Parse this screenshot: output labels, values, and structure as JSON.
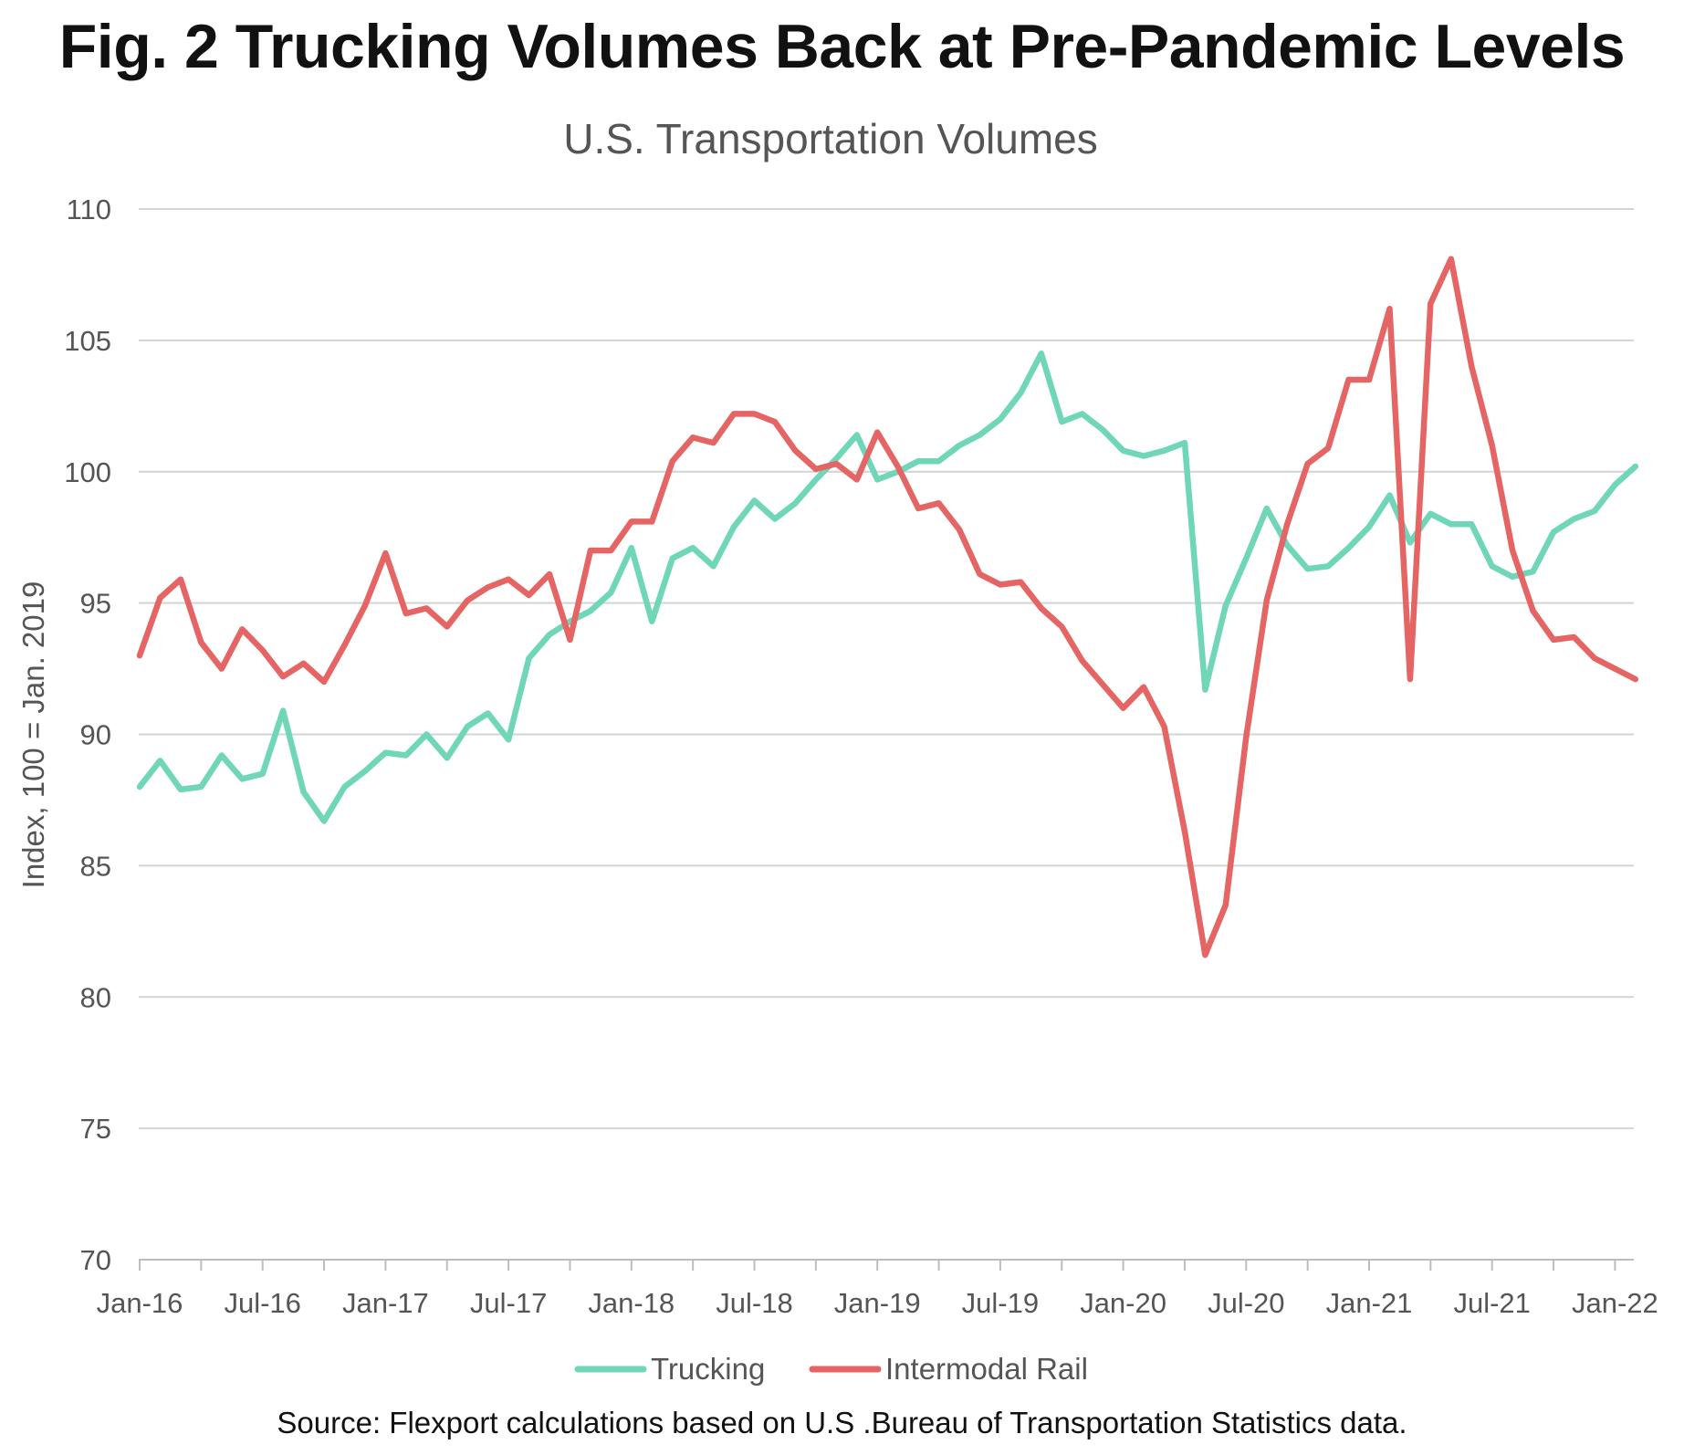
{
  "figure": {
    "title": "Fig. 2 Trucking Volumes Back at Pre-Pandemic Levels",
    "source": "Source: Flexport calculations based on U.S .Bureau of Transportation Statistics data."
  },
  "chart_data": {
    "type": "line",
    "title": "U.S. Transportation Volumes",
    "xlabel": "",
    "ylabel": "Index, 100 = Jan. 2019",
    "ylim": [
      70,
      110
    ],
    "yticks": [
      "70",
      "75",
      "80",
      "85",
      "90",
      "95",
      "100",
      "105",
      "110"
    ],
    "xticks": [
      "Jan-16",
      "Jul-16",
      "Jan-17",
      "Jul-17",
      "Jan-18",
      "Jul-18",
      "Jan-19",
      "Jul-19",
      "Jan-20",
      "Jul-20",
      "Jan-21",
      "Jul-21",
      "Jan-22"
    ],
    "grid": true,
    "legend_position": "bottom",
    "x_start": "Jan-16",
    "x_interval": "monthly",
    "series": [
      {
        "name": "Trucking",
        "color": "#6fd6b8",
        "values": [
          88.0,
          89.0,
          87.9,
          88.0,
          89.2,
          88.3,
          88.5,
          90.9,
          87.8,
          86.7,
          88.0,
          88.6,
          89.3,
          89.2,
          90.0,
          89.1,
          90.3,
          90.8,
          89.8,
          92.9,
          93.8,
          94.3,
          94.7,
          95.4,
          97.1,
          94.3,
          96.7,
          97.1,
          96.4,
          97.9,
          98.9,
          98.2,
          98.8,
          99.7,
          100.5,
          101.4,
          99.7,
          100.0,
          100.4,
          100.4,
          101.0,
          101.4,
          102.0,
          103.0,
          104.5,
          101.9,
          102.2,
          101.6,
          100.8,
          100.6,
          100.8,
          101.1,
          91.7,
          94.9,
          96.7,
          98.6,
          97.2,
          96.3,
          96.4,
          97.1,
          97.9,
          99.1,
          97.3,
          98.4,
          98.0,
          98.0,
          96.4,
          96.0,
          96.2,
          97.7,
          98.2,
          98.5,
          99.5,
          100.2
        ]
      },
      {
        "name": "Intermodal Rail",
        "color": "#e56464",
        "values": [
          93.0,
          95.2,
          95.9,
          93.5,
          92.5,
          94.0,
          93.2,
          92.2,
          92.7,
          92.0,
          93.4,
          94.9,
          96.9,
          94.6,
          94.8,
          94.1,
          95.1,
          95.6,
          95.9,
          95.3,
          96.1,
          93.6,
          97.0,
          97.0,
          98.1,
          98.1,
          100.4,
          101.3,
          101.1,
          102.2,
          102.2,
          101.9,
          100.8,
          100.1,
          100.3,
          99.7,
          101.5,
          100.2,
          98.6,
          98.8,
          97.8,
          96.1,
          95.7,
          95.8,
          94.8,
          94.1,
          92.8,
          91.9,
          91.0,
          91.8,
          90.3,
          86.3,
          81.6,
          83.5,
          89.9,
          95.1,
          98.0,
          100.3,
          100.9,
          103.5,
          103.5,
          106.2,
          92.1,
          106.4,
          108.1,
          104.0,
          101.0,
          97.0,
          94.7,
          93.6,
          93.7,
          92.9,
          92.5,
          92.1
        ]
      }
    ]
  }
}
